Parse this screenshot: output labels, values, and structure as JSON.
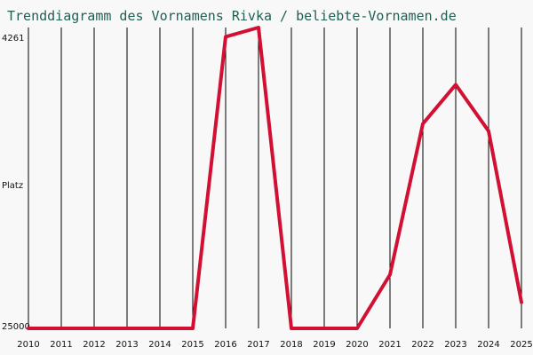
{
  "chart_data": {
    "type": "line",
    "title": "Trenddiagramm des Vornamens Rivka / beliebte-Vornamen.de",
    "ylabel": "Platz",
    "y_top_label": "4261",
    "y_bottom_label": "25000",
    "y_inverted": true,
    "ylim": [
      4261,
      25000
    ],
    "grid": "vertical",
    "x": [
      "2010",
      "2011",
      "2012",
      "2013",
      "2014",
      "2015",
      "2016",
      "2017",
      "2018",
      "2019",
      "2020",
      "2021",
      "2022",
      "2023",
      "2024",
      "2025"
    ],
    "series": [
      {
        "color": "#d21034",
        "values": [
          25000,
          25000,
          25000,
          25000,
          25000,
          25000,
          4900,
          4261,
          25000,
          25000,
          25000,
          21300,
          10900,
          8200,
          11400,
          23200
        ]
      }
    ]
  }
}
